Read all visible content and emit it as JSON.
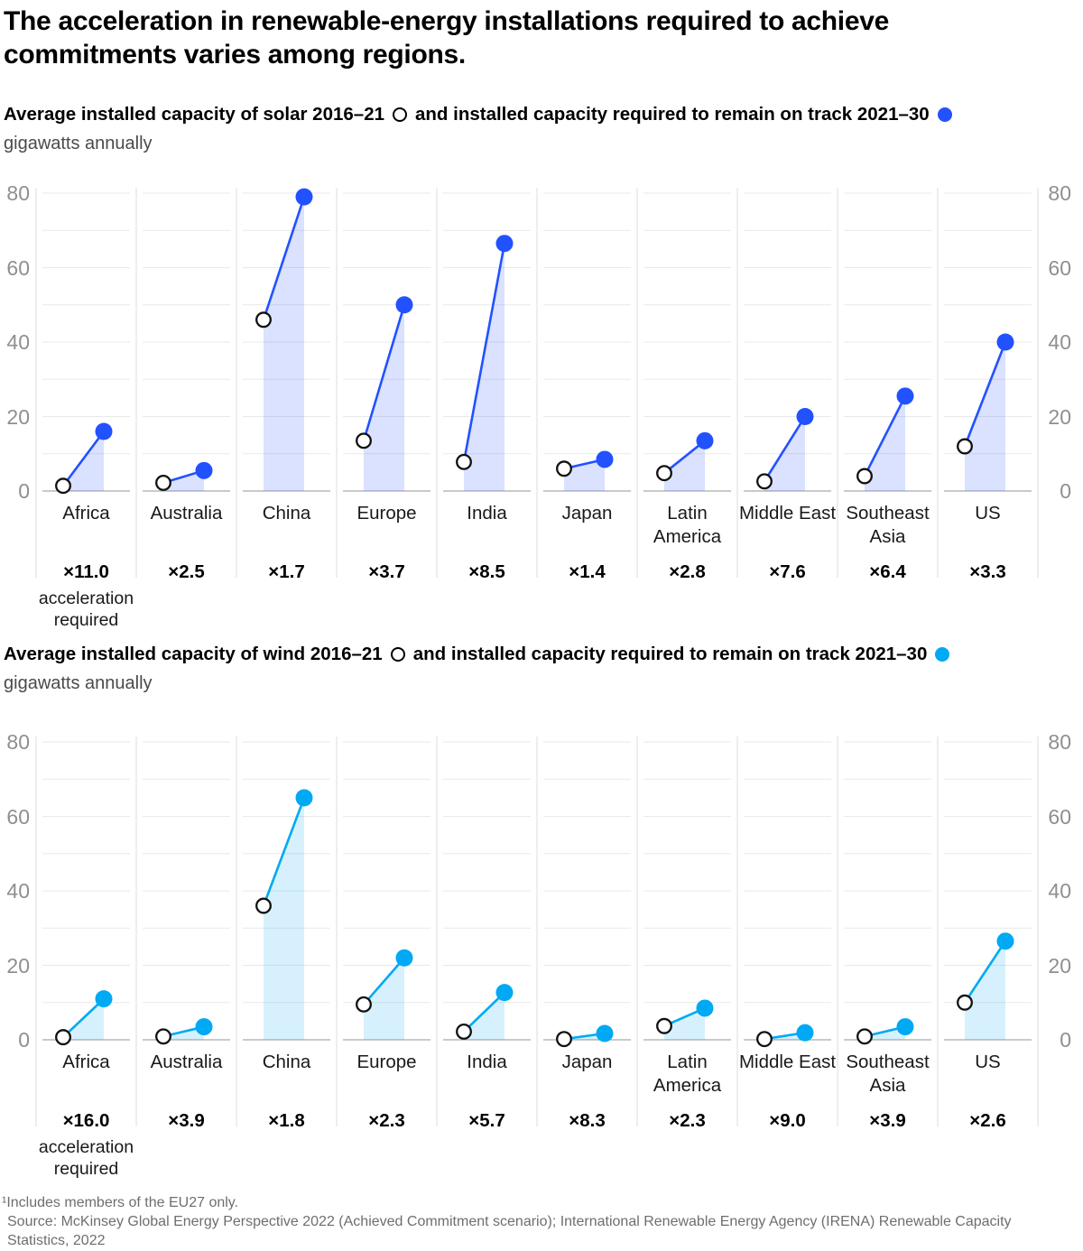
{
  "title": "The acceleration in renewable-energy installations required to achieve commitments varies among regions.",
  "accel_caption": "acceleration required",
  "axis": {
    "ticks": [
      0,
      20,
      40,
      60,
      80
    ],
    "max": 80,
    "grid_step": 10,
    "grid": "on",
    "label_sides": "left and right"
  },
  "chart_data": [
    {
      "type": "area",
      "name": "solar",
      "legend_avg": "Average installed capacity of solar 2016–21",
      "legend_req": "and installed capacity required to remain on track 2021–30",
      "unit": "gigawatts annually",
      "color": "#2251ff",
      "area_color": "rgba(34,81,255,0.17)",
      "ylim": [
        0,
        80
      ],
      "categories": [
        "Africa",
        "Australia",
        "China",
        "Europe",
        "India",
        "Japan",
        "Latin America",
        "Middle East",
        "Southeast Asia",
        "US"
      ],
      "series": [
        {
          "name": "Average installed capacity of solar 2016–21",
          "marker": "open-circle",
          "values": [
            1.4,
            2.2,
            46,
            13.5,
            7.8,
            6,
            4.8,
            2.6,
            4,
            12
          ]
        },
        {
          "name": "Installed capacity required to remain on track 2021–30",
          "marker": "filled-circle",
          "values": [
            16,
            5.5,
            79,
            50,
            66.5,
            8.5,
            13.5,
            20,
            25.5,
            40
          ]
        }
      ],
      "acceleration": [
        "×11.0",
        "×2.5",
        "×1.7",
        "×3.7",
        "×8.5",
        "×1.4",
        "×2.8",
        "×7.6",
        "×6.4",
        "×3.3"
      ]
    },
    {
      "type": "area",
      "name": "wind",
      "legend_avg": "Average installed capacity of wind 2016–21",
      "legend_req": "and installed capacity required to remain on track 2021–30",
      "unit": "gigawatts annually",
      "color": "#00a9f4",
      "area_color": "rgba(0,169,244,0.16)",
      "ylim": [
        0,
        80
      ],
      "categories": [
        "Africa",
        "Australia",
        "China",
        "Europe",
        "India",
        "Japan",
        "Latin America",
        "Middle East",
        "Southeast Asia",
        "US"
      ],
      "series": [
        {
          "name": "Average installed capacity of wind 2016–21",
          "marker": "open-circle",
          "values": [
            0.7,
            0.9,
            36,
            9.5,
            2.2,
            0.2,
            3.7,
            0.2,
            0.9,
            10
          ]
        },
        {
          "name": "Installed capacity required to remain on track 2021–30",
          "marker": "filled-circle",
          "values": [
            11,
            3.5,
            65,
            22,
            12.7,
            1.7,
            8.5,
            1.9,
            3.5,
            26.5
          ]
        }
      ],
      "acceleration": [
        "×16.0",
        "×3.9",
        "×1.8",
        "×2.3",
        "×5.7",
        "×8.3",
        "×2.3",
        "×9.0",
        "×3.9",
        "×2.6"
      ]
    }
  ],
  "footer": {
    "footnote": "¹Includes members of the EU27 only.",
    "source": "Source: McKinsey Global Energy Perspective 2022 (Achieved Commitment scenario); International Renewable Energy Agency (IRENA) Renewable Capacity Statistics, 2022"
  }
}
